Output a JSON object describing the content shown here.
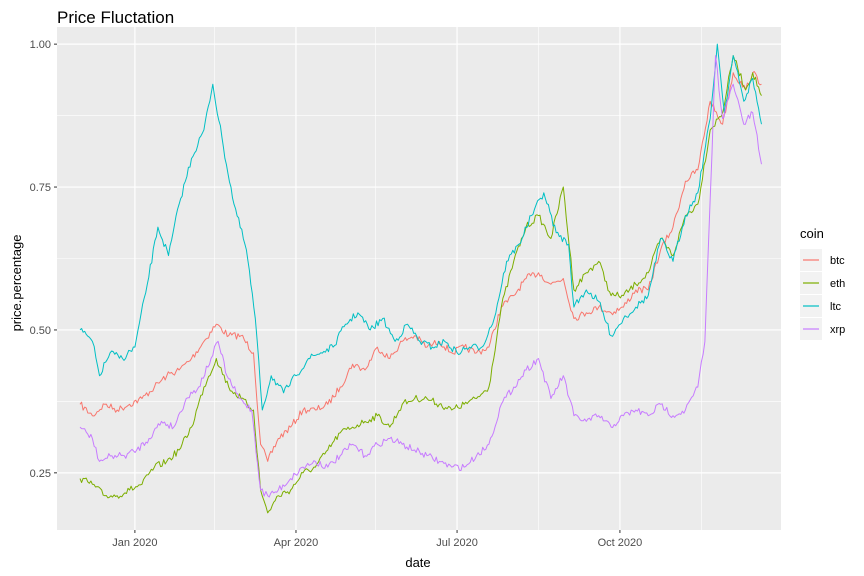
{
  "chart_data": {
    "type": "line",
    "title": "Price Fluctation",
    "xlabel": "date",
    "ylabel": "price.percentage",
    "x_ticks": [
      "Jan 2020",
      "Apr 2020",
      "Jul 2020",
      "Oct 2020"
    ],
    "y_ticks": [
      "0.25",
      "0.50",
      "0.75",
      "1.00"
    ],
    "ylim": [
      0.15,
      1.03
    ],
    "xlim": [
      "2019-11-18",
      "2020-12-31"
    ],
    "grid": true,
    "legend": {
      "title": "coin",
      "position": "right"
    },
    "series": [
      {
        "name": "btc",
        "color": "#F8766D",
        "points": [
          [
            "2019-12-01",
            0.37
          ],
          [
            "2019-12-08",
            0.35
          ],
          [
            "2019-12-15",
            0.37
          ],
          [
            "2019-12-22",
            0.36
          ],
          [
            "2019-12-29",
            0.37
          ],
          [
            "2020-01-05",
            0.38
          ],
          [
            "2020-01-12",
            0.4
          ],
          [
            "2020-01-19",
            0.42
          ],
          [
            "2020-01-26",
            0.43
          ],
          [
            "2020-02-02",
            0.45
          ],
          [
            "2020-02-09",
            0.48
          ],
          [
            "2020-02-16",
            0.51
          ],
          [
            "2020-02-23",
            0.49
          ],
          [
            "2020-03-01",
            0.49
          ],
          [
            "2020-03-08",
            0.46
          ],
          [
            "2020-03-12",
            0.3
          ],
          [
            "2020-03-16",
            0.27
          ],
          [
            "2020-03-22",
            0.31
          ],
          [
            "2020-03-29",
            0.33
          ],
          [
            "2020-04-05",
            0.36
          ],
          [
            "2020-04-12",
            0.36
          ],
          [
            "2020-04-19",
            0.37
          ],
          [
            "2020-04-26",
            0.4
          ],
          [
            "2020-05-03",
            0.44
          ],
          [
            "2020-05-10",
            0.43
          ],
          [
            "2020-05-17",
            0.47
          ],
          [
            "2020-05-24",
            0.45
          ],
          [
            "2020-05-31",
            0.48
          ],
          [
            "2020-06-07",
            0.49
          ],
          [
            "2020-06-14",
            0.47
          ],
          [
            "2020-06-21",
            0.48
          ],
          [
            "2020-06-28",
            0.46
          ],
          [
            "2020-07-05",
            0.47
          ],
          [
            "2020-07-12",
            0.46
          ],
          [
            "2020-07-19",
            0.47
          ],
          [
            "2020-07-26",
            0.54
          ],
          [
            "2020-08-02",
            0.56
          ],
          [
            "2020-08-09",
            0.59
          ],
          [
            "2020-08-16",
            0.6
          ],
          [
            "2020-08-23",
            0.58
          ],
          [
            "2020-08-30",
            0.59
          ],
          [
            "2020-09-05",
            0.52
          ],
          [
            "2020-09-12",
            0.53
          ],
          [
            "2020-09-19",
            0.54
          ],
          [
            "2020-09-26",
            0.53
          ],
          [
            "2020-10-03",
            0.54
          ],
          [
            "2020-10-10",
            0.57
          ],
          [
            "2020-10-17",
            0.57
          ],
          [
            "2020-10-24",
            0.64
          ],
          [
            "2020-10-31",
            0.68
          ],
          [
            "2020-11-07",
            0.76
          ],
          [
            "2020-11-14",
            0.78
          ],
          [
            "2020-11-21",
            0.9
          ],
          [
            "2020-11-28",
            0.86
          ],
          [
            "2020-12-04",
            0.95
          ],
          [
            "2020-12-11",
            0.92
          ],
          [
            "2020-12-15",
            0.95
          ],
          [
            "2020-12-20",
            0.93
          ]
        ]
      },
      {
        "name": "eth",
        "color": "#7CAE00",
        "points": [
          [
            "2019-12-01",
            0.24
          ],
          [
            "2019-12-08",
            0.23
          ],
          [
            "2019-12-15",
            0.21
          ],
          [
            "2019-12-22",
            0.21
          ],
          [
            "2019-12-29",
            0.22
          ],
          [
            "2020-01-05",
            0.23
          ],
          [
            "2020-01-12",
            0.26
          ],
          [
            "2020-01-19",
            0.27
          ],
          [
            "2020-01-26",
            0.29
          ],
          [
            "2020-02-02",
            0.33
          ],
          [
            "2020-02-09",
            0.4
          ],
          [
            "2020-02-16",
            0.45
          ],
          [
            "2020-02-23",
            0.4
          ],
          [
            "2020-03-01",
            0.38
          ],
          [
            "2020-03-08",
            0.36
          ],
          [
            "2020-03-12",
            0.22
          ],
          [
            "2020-03-16",
            0.18
          ],
          [
            "2020-03-22",
            0.21
          ],
          [
            "2020-03-29",
            0.22
          ],
          [
            "2020-04-05",
            0.25
          ],
          [
            "2020-04-12",
            0.26
          ],
          [
            "2020-04-19",
            0.29
          ],
          [
            "2020-04-26",
            0.32
          ],
          [
            "2020-05-03",
            0.33
          ],
          [
            "2020-05-10",
            0.34
          ],
          [
            "2020-05-17",
            0.35
          ],
          [
            "2020-05-24",
            0.33
          ],
          [
            "2020-05-31",
            0.37
          ],
          [
            "2020-06-07",
            0.38
          ],
          [
            "2020-06-14",
            0.38
          ],
          [
            "2020-06-21",
            0.37
          ],
          [
            "2020-06-28",
            0.36
          ],
          [
            "2020-07-05",
            0.37
          ],
          [
            "2020-07-12",
            0.38
          ],
          [
            "2020-07-19",
            0.4
          ],
          [
            "2020-07-26",
            0.54
          ],
          [
            "2020-08-02",
            0.62
          ],
          [
            "2020-08-09",
            0.68
          ],
          [
            "2020-08-16",
            0.7
          ],
          [
            "2020-08-23",
            0.66
          ],
          [
            "2020-08-30",
            0.75
          ],
          [
            "2020-09-05",
            0.57
          ],
          [
            "2020-09-12",
            0.6
          ],
          [
            "2020-09-19",
            0.62
          ],
          [
            "2020-09-26",
            0.56
          ],
          [
            "2020-10-03",
            0.56
          ],
          [
            "2020-10-10",
            0.58
          ],
          [
            "2020-10-17",
            0.6
          ],
          [
            "2020-10-24",
            0.66
          ],
          [
            "2020-10-31",
            0.63
          ],
          [
            "2020-11-07",
            0.7
          ],
          [
            "2020-11-14",
            0.72
          ],
          [
            "2020-11-21",
            0.85
          ],
          [
            "2020-11-28",
            0.88
          ],
          [
            "2020-12-04",
            0.98
          ],
          [
            "2020-12-11",
            0.92
          ],
          [
            "2020-12-15",
            0.95
          ],
          [
            "2020-12-20",
            0.91
          ]
        ]
      },
      {
        "name": "ltc",
        "color": "#00BFC4",
        "points": [
          [
            "2019-12-01",
            0.5
          ],
          [
            "2019-12-08",
            0.48
          ],
          [
            "2019-12-12",
            0.42
          ],
          [
            "2019-12-18",
            0.46
          ],
          [
            "2019-12-25",
            0.45
          ],
          [
            "2020-01-01",
            0.47
          ],
          [
            "2020-01-08",
            0.58
          ],
          [
            "2020-01-14",
            0.68
          ],
          [
            "2020-01-20",
            0.63
          ],
          [
            "2020-01-26",
            0.72
          ],
          [
            "2020-02-02",
            0.8
          ],
          [
            "2020-02-09",
            0.85
          ],
          [
            "2020-02-14",
            0.93
          ],
          [
            "2020-02-20",
            0.82
          ],
          [
            "2020-02-26",
            0.72
          ],
          [
            "2020-03-04",
            0.64
          ],
          [
            "2020-03-09",
            0.52
          ],
          [
            "2020-03-13",
            0.36
          ],
          [
            "2020-03-18",
            0.42
          ],
          [
            "2020-03-25",
            0.39
          ],
          [
            "2020-04-01",
            0.42
          ],
          [
            "2020-04-08",
            0.45
          ],
          [
            "2020-04-15",
            0.46
          ],
          [
            "2020-04-22",
            0.47
          ],
          [
            "2020-04-29",
            0.51
          ],
          [
            "2020-05-06",
            0.53
          ],
          [
            "2020-05-13",
            0.5
          ],
          [
            "2020-05-20",
            0.52
          ],
          [
            "2020-05-27",
            0.48
          ],
          [
            "2020-06-03",
            0.51
          ],
          [
            "2020-06-10",
            0.48
          ],
          [
            "2020-06-17",
            0.47
          ],
          [
            "2020-06-24",
            0.48
          ],
          [
            "2020-07-01",
            0.46
          ],
          [
            "2020-07-08",
            0.47
          ],
          [
            "2020-07-15",
            0.47
          ],
          [
            "2020-07-22",
            0.52
          ],
          [
            "2020-07-29",
            0.62
          ],
          [
            "2020-08-05",
            0.65
          ],
          [
            "2020-08-12",
            0.7
          ],
          [
            "2020-08-19",
            0.74
          ],
          [
            "2020-08-26",
            0.67
          ],
          [
            "2020-09-02",
            0.65
          ],
          [
            "2020-09-05",
            0.54
          ],
          [
            "2020-09-12",
            0.57
          ],
          [
            "2020-09-19",
            0.55
          ],
          [
            "2020-09-26",
            0.49
          ],
          [
            "2020-10-03",
            0.52
          ],
          [
            "2020-10-10",
            0.54
          ],
          [
            "2020-10-17",
            0.56
          ],
          [
            "2020-10-24",
            0.66
          ],
          [
            "2020-10-31",
            0.62
          ],
          [
            "2020-11-07",
            0.7
          ],
          [
            "2020-11-14",
            0.74
          ],
          [
            "2020-11-21",
            0.87
          ],
          [
            "2020-11-25",
            1.0
          ],
          [
            "2020-11-29",
            0.88
          ],
          [
            "2020-12-04",
            0.98
          ],
          [
            "2020-12-10",
            0.9
          ],
          [
            "2020-12-15",
            0.94
          ],
          [
            "2020-12-20",
            0.86
          ]
        ]
      },
      {
        "name": "xrp",
        "color": "#C77CFF",
        "points": [
          [
            "2019-12-01",
            0.33
          ],
          [
            "2019-12-08",
            0.31
          ],
          [
            "2019-12-12",
            0.27
          ],
          [
            "2019-12-19",
            0.28
          ],
          [
            "2019-12-26",
            0.28
          ],
          [
            "2020-01-02",
            0.29
          ],
          [
            "2020-01-09",
            0.31
          ],
          [
            "2020-01-16",
            0.34
          ],
          [
            "2020-01-23",
            0.33
          ],
          [
            "2020-01-30",
            0.38
          ],
          [
            "2020-02-06",
            0.4
          ],
          [
            "2020-02-13",
            0.45
          ],
          [
            "2020-02-17",
            0.48
          ],
          [
            "2020-02-22",
            0.42
          ],
          [
            "2020-02-29",
            0.38
          ],
          [
            "2020-03-07",
            0.36
          ],
          [
            "2020-03-12",
            0.22
          ],
          [
            "2020-03-16",
            0.21
          ],
          [
            "2020-03-22",
            0.22
          ],
          [
            "2020-03-29",
            0.24
          ],
          [
            "2020-04-05",
            0.26
          ],
          [
            "2020-04-12",
            0.27
          ],
          [
            "2020-04-19",
            0.26
          ],
          [
            "2020-04-26",
            0.28
          ],
          [
            "2020-05-03",
            0.3
          ],
          [
            "2020-05-10",
            0.28
          ],
          [
            "2020-05-17",
            0.3
          ],
          [
            "2020-05-24",
            0.31
          ],
          [
            "2020-05-31",
            0.3
          ],
          [
            "2020-06-07",
            0.29
          ],
          [
            "2020-06-14",
            0.28
          ],
          [
            "2020-06-21",
            0.27
          ],
          [
            "2020-06-28",
            0.26
          ],
          [
            "2020-07-05",
            0.26
          ],
          [
            "2020-07-12",
            0.28
          ],
          [
            "2020-07-19",
            0.3
          ],
          [
            "2020-07-26",
            0.37
          ],
          [
            "2020-08-02",
            0.4
          ],
          [
            "2020-08-09",
            0.43
          ],
          [
            "2020-08-16",
            0.45
          ],
          [
            "2020-08-23",
            0.38
          ],
          [
            "2020-08-30",
            0.42
          ],
          [
            "2020-09-05",
            0.35
          ],
          [
            "2020-09-12",
            0.34
          ],
          [
            "2020-09-19",
            0.35
          ],
          [
            "2020-09-26",
            0.33
          ],
          [
            "2020-10-03",
            0.35
          ],
          [
            "2020-10-10",
            0.36
          ],
          [
            "2020-10-17",
            0.35
          ],
          [
            "2020-10-24",
            0.37
          ],
          [
            "2020-10-31",
            0.35
          ],
          [
            "2020-11-07",
            0.36
          ],
          [
            "2020-11-14",
            0.4
          ],
          [
            "2020-11-18",
            0.48
          ],
          [
            "2020-11-21",
            0.73
          ],
          [
            "2020-11-24",
            0.98
          ],
          [
            "2020-11-28",
            0.87
          ],
          [
            "2020-12-04",
            0.93
          ],
          [
            "2020-12-10",
            0.86
          ],
          [
            "2020-12-15",
            0.88
          ],
          [
            "2020-12-20",
            0.79
          ]
        ]
      }
    ]
  }
}
